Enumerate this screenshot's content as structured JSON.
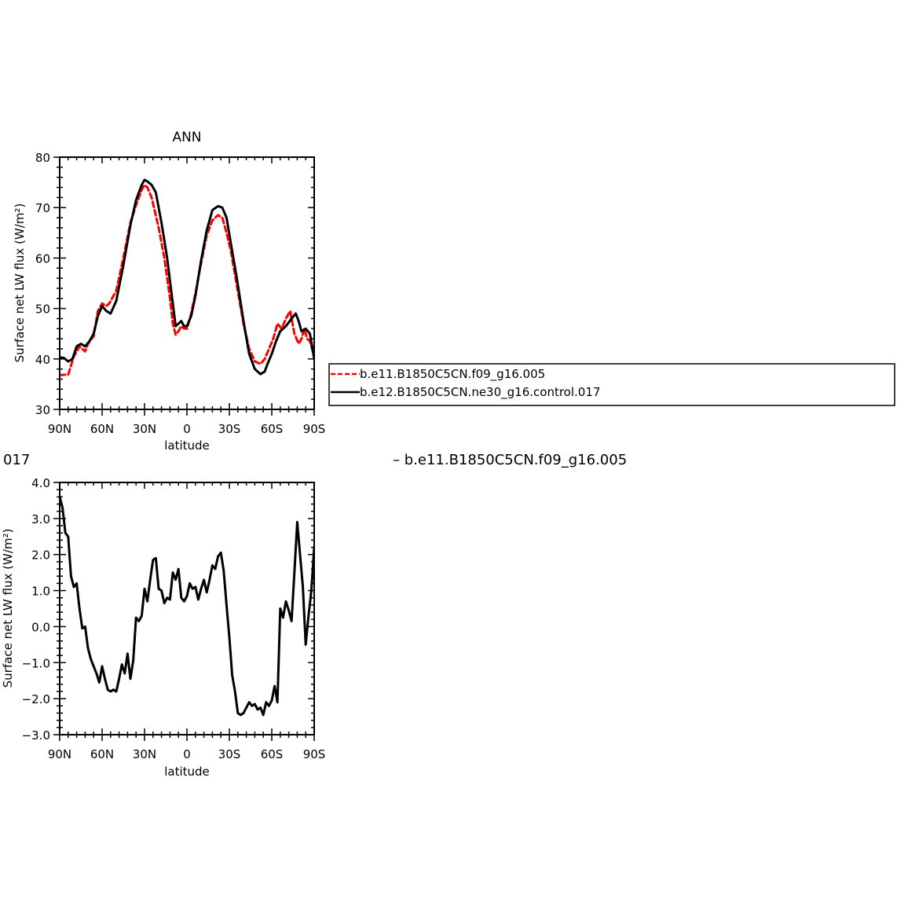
{
  "chart_data": [
    {
      "type": "line",
      "title": "ANN",
      "xlabel": "latitude",
      "ylabel": "Surface net LW flux (W/m²)",
      "xlim": [
        90,
        -90
      ],
      "ylim": [
        30,
        80
      ],
      "yticks": [
        30,
        40,
        50,
        60,
        70,
        80
      ],
      "ytick_labels": [
        "30",
        "40",
        "50",
        "60",
        "70",
        "80"
      ],
      "xticks": [
        90,
        60,
        30,
        0,
        -30,
        -60,
        -90
      ],
      "xtick_labels": [
        "90N",
        "60N",
        "30N",
        "0",
        "30S",
        "60S",
        "90S"
      ],
      "grid": false,
      "legend_placement": "right, outside",
      "series": [
        {
          "name": "b.e11.B1850C5CN.f09_g16.005",
          "color": "#ff0000",
          "dashed": true,
          "x": [
            90,
            84,
            80,
            76,
            72,
            70,
            66,
            63,
            60,
            57,
            55,
            50,
            45,
            40,
            36,
            32,
            30,
            28,
            25,
            20,
            16,
            12,
            10,
            8,
            6,
            4,
            2,
            0,
            -3,
            -6,
            -10,
            -14,
            -18,
            -22,
            -25,
            -28,
            -31,
            -35,
            -40,
            -44,
            -48,
            -52,
            -55,
            -58,
            -61,
            -64,
            -67,
            -70,
            -73,
            -76,
            -79,
            -81,
            -83,
            -85,
            -87,
            -90
          ],
          "y": [
            36.8,
            36.9,
            40.5,
            42.5,
            41.5,
            43.0,
            44.5,
            49.5,
            51.0,
            50.5,
            51.0,
            53.5,
            60.0,
            67.0,
            70.5,
            73.5,
            74.5,
            74.0,
            72.0,
            66.0,
            60.0,
            52.0,
            47.0,
            44.8,
            45.5,
            46.5,
            46.0,
            46.0,
            49.0,
            53.0,
            59.0,
            64.5,
            67.5,
            68.5,
            68.0,
            65.0,
            61.5,
            55.0,
            47.0,
            42.0,
            39.5,
            39.0,
            40.0,
            42.0,
            44.0,
            47.0,
            46.0,
            48.0,
            49.5,
            45.0,
            43.0,
            44.0,
            46.0,
            44.0,
            43.5,
            40.5
          ]
        },
        {
          "name": "b.e12.B1850C5CN.ne30_g16.control.017",
          "color": "#000000",
          "dashed": false,
          "x": [
            90,
            87,
            84,
            81,
            78,
            75,
            72,
            69,
            66,
            63,
            60,
            57,
            54,
            50,
            45,
            40,
            36,
            32,
            30,
            28,
            25,
            22,
            18,
            14,
            10,
            8,
            6,
            4,
            2,
            0,
            -3,
            -6,
            -10,
            -14,
            -18,
            -22,
            -25,
            -28,
            -31,
            -35,
            -40,
            -44,
            -48,
            -52,
            -55,
            -57,
            -60,
            -63,
            -66,
            -70,
            -74,
            -77,
            -79,
            -81,
            -84,
            -87,
            -90
          ],
          "y": [
            40.3,
            40.2,
            39.5,
            40.0,
            42.5,
            43.0,
            42.5,
            43.5,
            45.0,
            48.5,
            50.5,
            49.5,
            49.0,
            51.5,
            58.5,
            66.5,
            71.5,
            74.5,
            75.5,
            75.2,
            74.5,
            73.0,
            67.0,
            60.0,
            51.0,
            46.5,
            47.0,
            47.5,
            46.5,
            46.5,
            48.5,
            52.5,
            59.5,
            65.5,
            69.5,
            70.3,
            70.0,
            68.0,
            63.0,
            56.5,
            47.5,
            41.0,
            38.0,
            37.0,
            37.5,
            39.0,
            41.0,
            43.5,
            45.5,
            46.5,
            48.0,
            49.0,
            47.5,
            45.5,
            46.0,
            45.0,
            40.0
          ]
        }
      ]
    },
    {
      "type": "line",
      "title": "",
      "xlabel": "latitude",
      "ylabel": "Surface net LW flux (W/m²)",
      "title_left_fragment": "017",
      "title_right_fragment": "–  b.e11.B1850C5CN.f09_g16.005",
      "xlim": [
        90,
        -90
      ],
      "ylim": [
        -3,
        4
      ],
      "yticks": [
        -3,
        -2,
        -1,
        0,
        1,
        2,
        3,
        4
      ],
      "ytick_labels": [
        "−3.0",
        "−2.0",
        "−1.0",
        "0.0",
        "1.0",
        "2.0",
        "3.0",
        "4.0"
      ],
      "xticks": [
        90,
        60,
        30,
        0,
        -30,
        -60,
        -90
      ],
      "xtick_labels": [
        "90N",
        "60N",
        "30N",
        "0",
        "30S",
        "60S",
        "90S"
      ],
      "grid": false,
      "series": [
        {
          "name": "",
          "color": "#000000",
          "dashed": false,
          "x": [
            90,
            88,
            86,
            84,
            82,
            80,
            78,
            76,
            74,
            72,
            70,
            68,
            66,
            64,
            62,
            60,
            58,
            56,
            54,
            52,
            50,
            48,
            46,
            44,
            42,
            40,
            38,
            36,
            34,
            32,
            30,
            28,
            26,
            24,
            22,
            20,
            18,
            16,
            14,
            12,
            10,
            8,
            6,
            4,
            2,
            0,
            -2,
            -4,
            -6,
            -8,
            -10,
            -12,
            -14,
            -16,
            -18,
            -20,
            -22,
            -24,
            -26,
            -28,
            -30,
            -32,
            -34,
            -36,
            -38,
            -40,
            -42,
            -44,
            -46,
            -48,
            -50,
            -52,
            -54,
            -56,
            -58,
            -60,
            -62,
            -64,
            -66,
            -68,
            -70,
            -72,
            -74,
            -76,
            -78,
            -80,
            -82,
            -84,
            -86,
            -88,
            -90
          ],
          "y": [
            3.6,
            3.3,
            2.6,
            2.5,
            1.4,
            1.1,
            1.2,
            0.5,
            -0.05,
            0.0,
            -0.6,
            -0.9,
            -1.1,
            -1.3,
            -1.55,
            -1.1,
            -1.45,
            -1.75,
            -1.8,
            -1.75,
            -1.8,
            -1.45,
            -1.05,
            -1.3,
            -0.75,
            -1.45,
            -0.95,
            0.25,
            0.15,
            0.3,
            1.05,
            0.7,
            1.3,
            1.85,
            1.9,
            1.05,
            1.0,
            0.65,
            0.8,
            0.75,
            1.5,
            1.3,
            1.6,
            0.8,
            0.7,
            0.85,
            1.2,
            1.05,
            1.1,
            0.75,
            1.05,
            1.3,
            0.95,
            1.3,
            1.7,
            1.6,
            1.95,
            2.05,
            1.55,
            0.6,
            -0.3,
            -1.35,
            -1.8,
            -2.4,
            -2.45,
            -2.4,
            -2.25,
            -2.1,
            -2.2,
            -2.15,
            -2.3,
            -2.25,
            -2.45,
            -2.1,
            -2.2,
            -2.05,
            -1.65,
            -2.1,
            0.5,
            0.25,
            0.7,
            0.45,
            0.15,
            1.5,
            2.9,
            2.0,
            1.1,
            -0.5,
            0.3,
            1.0,
            2.2
          ]
        }
      ]
    }
  ]
}
